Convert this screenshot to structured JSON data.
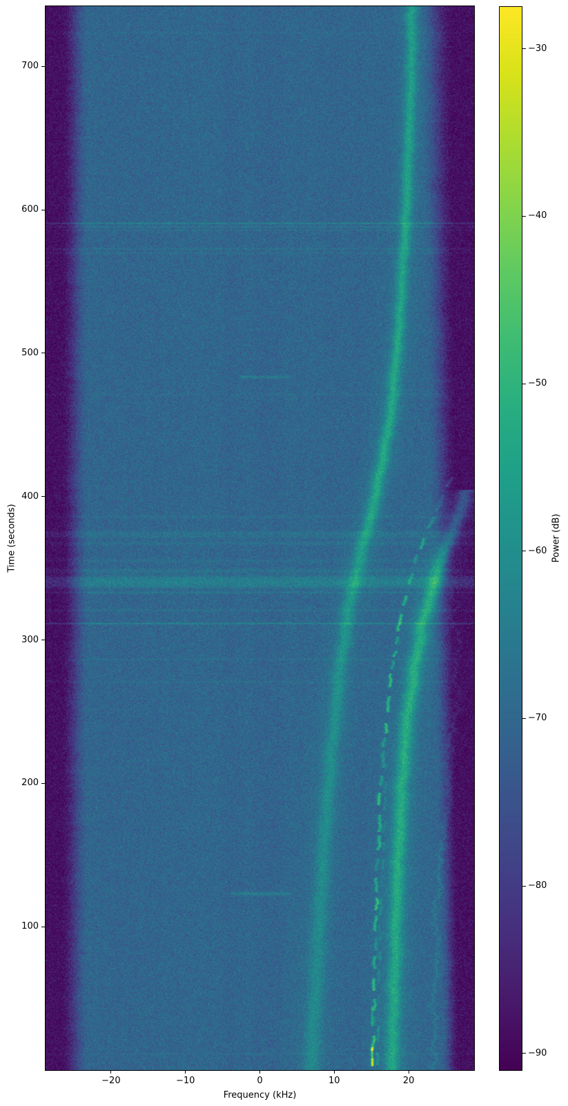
{
  "chart_data": {
    "type": "heatmap",
    "subtype": "spectrogram",
    "title": "",
    "xlabel": "Frequency (kHz)",
    "ylabel": "Time (seconds)",
    "xlim": [
      -28.8,
      28.8
    ],
    "ylim": [
      0,
      742
    ],
    "xticks": [
      -20,
      -10,
      0,
      10,
      20
    ],
    "yticks": [
      100,
      200,
      300,
      400,
      500,
      600,
      700
    ],
    "grid": false,
    "colorbar": {
      "label": "Power (dB)",
      "vmin": -91,
      "vmax": -27.5,
      "ticks": [
        -30,
        -40,
        -50,
        -60,
        -70,
        -80,
        -90
      ],
      "position": "right"
    },
    "colormap": {
      "name": "viridis",
      "stops": [
        [
          0.0,
          "#440154"
        ],
        [
          0.0625,
          "#48186a"
        ],
        [
          0.125,
          "#472d7b"
        ],
        [
          0.1875,
          "#424086"
        ],
        [
          0.25,
          "#3b528b"
        ],
        [
          0.3125,
          "#33638d"
        ],
        [
          0.375,
          "#2c728e"
        ],
        [
          0.4375,
          "#26828e"
        ],
        [
          0.5,
          "#21918c"
        ],
        [
          0.5625,
          "#1fa088"
        ],
        [
          0.625,
          "#28ae80"
        ],
        [
          0.6875,
          "#3fbc73"
        ],
        [
          0.75,
          "#5ec962"
        ],
        [
          0.8125,
          "#84d44b"
        ],
        [
          0.875,
          "#addc30"
        ],
        [
          0.9375,
          "#d8e219"
        ],
        [
          1.0,
          "#fde725"
        ]
      ]
    },
    "noise_floor_db": -70.3,
    "noise_sigma_db": 3.2,
    "edge_floor_db": -88.8,
    "band_edges": {
      "left": {
        "dark_until_khz": -26.8,
        "blue_by_khz": -23.0
      },
      "right": {
        "fade_start_khz_top": 21.3,
        "fade_start_khz_bottom": 24.4,
        "dark_by_khz_top": 26.0,
        "dark_by_khz_bottom": 26.8
      }
    },
    "features": {
      "curves": [
        {
          "name": "doppler-main-band",
          "halo": true,
          "dashed": false,
          "wiggle": 0.6,
          "points": [
            [
              0,
              6.9,
              7,
              8
            ],
            [
              73,
              7.6,
              7,
              8
            ],
            [
              145,
              8.4,
              7.5,
              7.5
            ],
            [
              217,
              9.5,
              8,
              7.5
            ],
            [
              289,
              10.9,
              9,
              7
            ],
            [
              337,
              12.5,
              10,
              6.5
            ],
            [
              361,
              13.6,
              11,
              6.5
            ],
            [
              385,
              14.7,
              12,
              6
            ],
            [
              409,
              15.8,
              13,
              6
            ],
            [
              434,
              16.7,
              13,
              6
            ],
            [
              458,
              17.5,
              13,
              5.8
            ],
            [
              482,
              18.0,
              13,
              5.8
            ],
            [
              506,
              18.5,
              13,
              5.5
            ],
            [
              530,
              18.9,
              12.5,
              5.5
            ],
            [
              554,
              19.1,
              12,
              5.5
            ],
            [
              602,
              19.6,
              12,
              5.5
            ],
            [
              650,
              20.0,
              11.5,
              5.5
            ],
            [
              698,
              20.3,
              11,
              5.5
            ],
            [
              742,
              20.4,
              11,
              5.5
            ]
          ]
        },
        {
          "name": "doppler-bright-band",
          "halo": true,
          "dashed": false,
          "wiggle": 0.6,
          "points": [
            [
              0,
              17.7,
              13,
              7
            ],
            [
              49,
              18.0,
              13,
              7
            ],
            [
              97,
              18.3,
              13.5,
              7
            ],
            [
              145,
              18.6,
              14,
              7
            ],
            [
              193,
              19.0,
              14,
              7
            ],
            [
              241,
              19.6,
              14,
              7
            ],
            [
              289,
              21.0,
              14,
              7
            ],
            [
              313,
              21.9,
              14,
              7
            ],
            [
              337,
              23.2,
              14,
              7
            ],
            [
              361,
              24.7,
              14,
              7
            ],
            [
              376,
              25.8,
              13,
              7
            ],
            [
              393,
              27.0,
              12,
              7
            ],
            [
              405,
              27.9,
              11,
              7
            ]
          ]
        },
        {
          "name": "thin-dashed-chirp",
          "halo": false,
          "dashed": true,
          "wiggle": 0.8,
          "points": [
            [
              0,
              15.1,
              15,
              1.7
            ],
            [
              49,
              15.3,
              15,
              1.7
            ],
            [
              97,
              15.5,
              15,
              1.7
            ],
            [
              145,
              15.8,
              15,
              1.7
            ],
            [
              193,
              16.2,
              14,
              1.7
            ],
            [
              241,
              16.8,
              14,
              1.7
            ],
            [
              289,
              17.9,
              13,
              1.7
            ],
            [
              313,
              18.8,
              13,
              1.7
            ],
            [
              337,
              19.9,
              12,
              1.7
            ],
            [
              361,
              21.3,
              12,
              1.7
            ],
            [
              381,
              22.8,
              11,
              1.7
            ],
            [
              400,
              24.5,
              10,
              1.7
            ],
            [
              414,
              25.8,
              9,
              1.7
            ]
          ]
        },
        {
          "name": "thin-dashed-companion",
          "halo": false,
          "dashed": true,
          "wiggle": 0.7,
          "points": [
            [
              0,
              15.75,
              6,
              1.4
            ],
            [
              49,
              15.95,
              6,
              1.4
            ],
            [
              97,
              16.15,
              6,
              1.4
            ],
            [
              145,
              16.45,
              5,
              1.4
            ],
            [
              193,
              16.85,
              4,
              1.4
            ],
            [
              220,
              17.1,
              3,
              1.4
            ]
          ]
        },
        {
          "name": "outer-faint-line",
          "halo": false,
          "dashed": false,
          "wiggle": 2.5,
          "points": [
            [
              0,
              23.1,
              5,
              1.6
            ],
            [
              49,
              23.4,
              5,
              1.6
            ],
            [
              97,
              23.7,
              5,
              1.6
            ],
            [
              145,
              24.3,
              5,
              1.6
            ],
            [
              193,
              25.1,
              4.5,
              1.6
            ],
            [
              241,
              25.8,
              4,
              1.6
            ],
            [
              289,
              26.2,
              4,
              1.6
            ],
            [
              337,
              26.3,
              3,
              1.6
            ]
          ]
        }
      ],
      "horizontal_lines": [
        {
          "t": 723.6,
          "amp": 1.5,
          "sigma": 1.0
        },
        {
          "t": 590.8,
          "amp": 7.0,
          "sigma": 0.8
        },
        {
          "t": 588.4,
          "amp": 4.0,
          "sigma": 0.8
        },
        {
          "t": 586.0,
          "amp": 2.5,
          "sigma": 0.8
        },
        {
          "t": 573.0,
          "amp": 3.0,
          "sigma": 0.9
        },
        {
          "t": 570.1,
          "amp": 2.5,
          "sigma": 0.9
        },
        {
          "t": 471.5,
          "amp": 1.5,
          "sigma": 1.0
        },
        {
          "t": 386.3,
          "amp": 2.0,
          "sigma": 1.5
        },
        {
          "t": 374.8,
          "amp": 3.0,
          "sigma": 2.0
        },
        {
          "t": 372.4,
          "amp": 2.5,
          "sigma": 1.8
        },
        {
          "t": 367.6,
          "amp": 2.5,
          "sigma": 1.8
        },
        {
          "t": 355.5,
          "amp": 2.0,
          "sigma": 1.8
        },
        {
          "t": 348.3,
          "amp": 3.0,
          "sigma": 2.5
        },
        {
          "t": 343.5,
          "amp": 4.5,
          "sigma": 2.5
        },
        {
          "t": 340.6,
          "amp": 6.0,
          "sigma": 3.0
        },
        {
          "t": 337.7,
          "amp": 4.5,
          "sigma": 2.5
        },
        {
          "t": 333.4,
          "amp": 4.0,
          "sigma": 1.2
        },
        {
          "t": 320.9,
          "amp": 2.5,
          "sigma": 1.2
        },
        {
          "t": 311.7,
          "amp": 8.0,
          "sigma": 0.8
        },
        {
          "t": 286.7,
          "amp": 2.0,
          "sigma": 1.0
        },
        {
          "t": 270.9,
          "amp": 2.0,
          "sigma": 1.0
        },
        {
          "t": 11.5,
          "amp": 1.8,
          "sigma": 0.9
        }
      ],
      "horizontal_dashes": [
        {
          "t": 483.5,
          "f1": -3.1,
          "f2": 4.4,
          "amp": 5.5,
          "sigma": 1.6
        },
        {
          "t": 123.2,
          "f1": -4.3,
          "f2": 4.4,
          "amp": 6.0,
          "sigma": 1.8
        }
      ],
      "vertical_segments": [
        {
          "f": 15.05,
          "t1": 3.4,
          "t2": 15.4,
          "amp": 28,
          "sigma": 1.2
        },
        {
          "f": 15.05,
          "t1": 30.8,
          "t2": 43.8,
          "amp": 14,
          "sigma": 1.1
        }
      ]
    }
  }
}
